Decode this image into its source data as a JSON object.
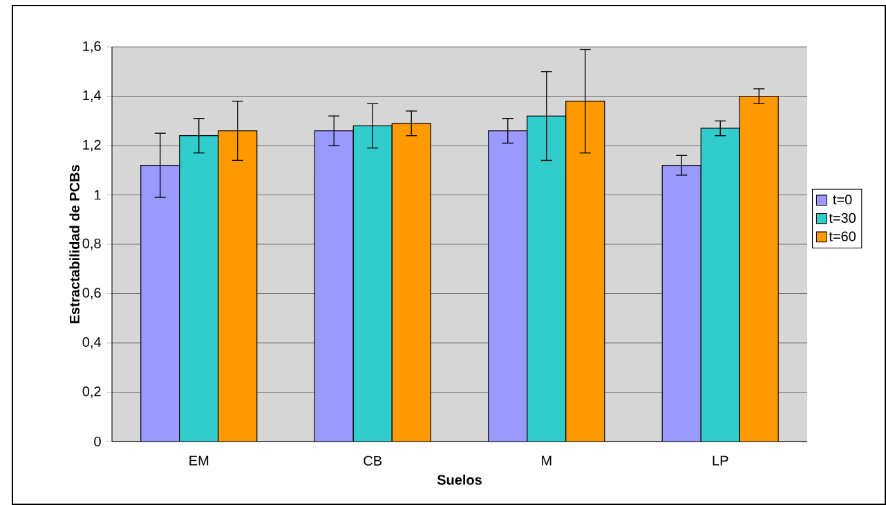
{
  "chart_data": {
    "type": "bar",
    "xlabel": "Suelos",
    "ylabel": "Estractabilidad de PCBs",
    "categories": [
      "EM",
      "CB",
      "M",
      "LP"
    ],
    "series": [
      {
        "name": "t=0",
        "color": "#9999ff",
        "values": [
          1.12,
          1.26,
          1.26,
          1.12
        ],
        "errors": [
          0.13,
          0.06,
          0.05,
          0.04
        ]
      },
      {
        "name": "t=30",
        "color": "#33cccc",
        "values": [
          1.24,
          1.28,
          1.32,
          1.27
        ],
        "errors": [
          0.07,
          0.09,
          0.18,
          0.03
        ]
      },
      {
        "name": "t=60",
        "color": "#ff9900",
        "values": [
          1.26,
          1.29,
          1.38,
          1.4
        ],
        "errors": [
          0.12,
          0.05,
          0.21,
          0.03
        ]
      }
    ],
    "ylim": [
      0,
      1.6
    ],
    "yticks": [
      0,
      {
        "value": 0.2,
        "label": "0,2"
      },
      {
        "value": 0.4,
        "label": "0,4"
      },
      {
        "value": 0.6,
        "label": "0,6"
      },
      {
        "value": 0.8,
        "label": "0,8"
      },
      1,
      {
        "value": 1.2,
        "label": "1,2"
      },
      {
        "value": 1.4,
        "label": "1,4"
      },
      {
        "value": 1.6,
        "label": "1,6"
      }
    ],
    "grid": "y",
    "legend": "right"
  }
}
